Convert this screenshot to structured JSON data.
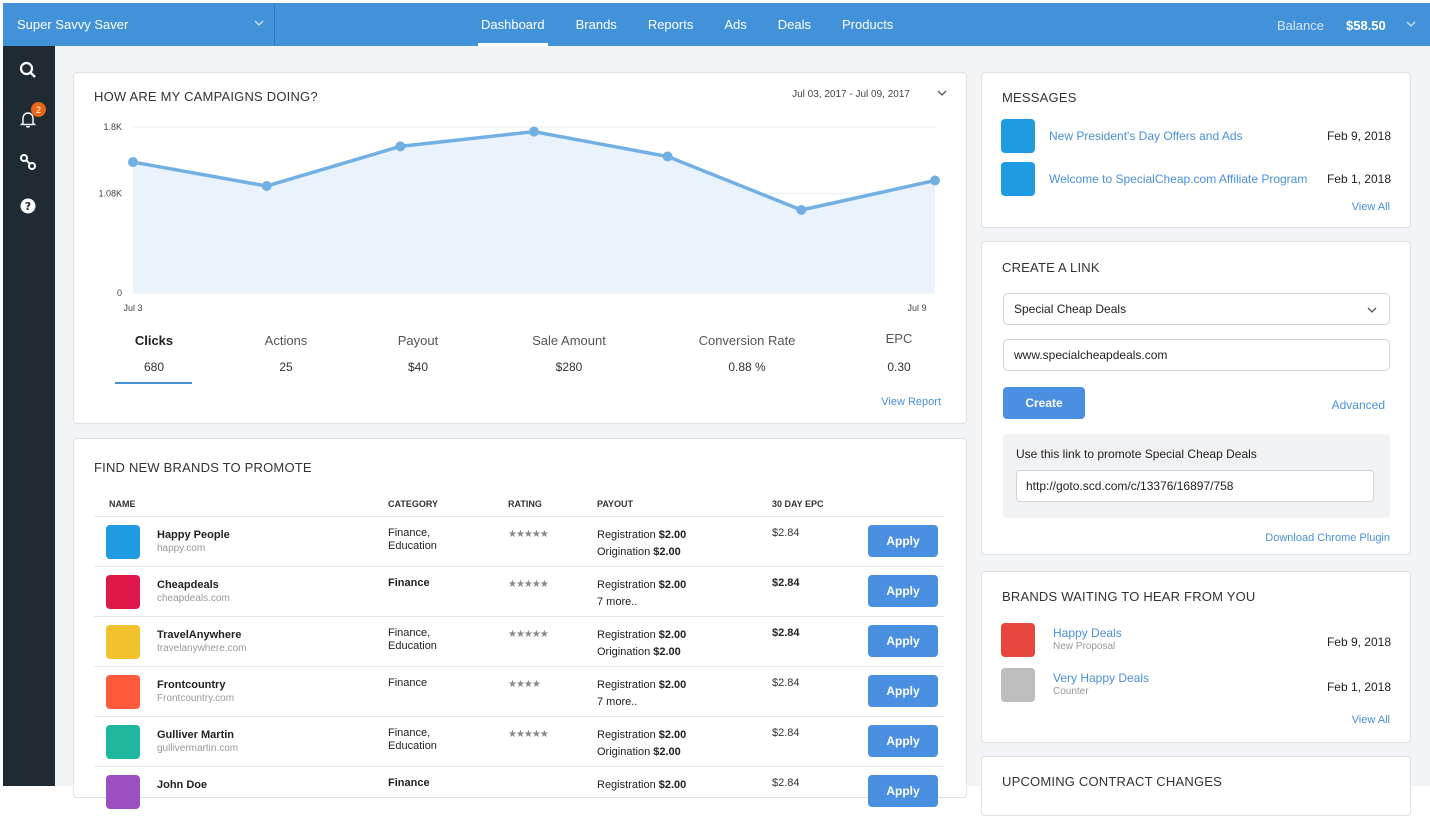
{
  "header": {
    "account_name": "Super Savvy Saver",
    "nav": [
      "Dashboard",
      "Brands",
      "Reports",
      "Ads",
      "Deals",
      "Products"
    ],
    "active_nav": "Dashboard",
    "balance_label": "Balance",
    "balance_value": "$58.50"
  },
  "sidebar": {
    "icons": [
      "search-icon",
      "bell-icon",
      "link-icon",
      "help-icon"
    ],
    "notification_count": "2"
  },
  "campaigns": {
    "title": "HOW ARE MY CAMPAIGNS DOING?",
    "date_range": "Jul 03, 2017 - Jul 09, 2017",
    "view_report": "View Report",
    "stats": [
      {
        "label": "Clicks",
        "value": "680"
      },
      {
        "label": "Actions",
        "value": "25"
      },
      {
        "label": "Payout",
        "value": "$40"
      },
      {
        "label": "Sale Amount",
        "value": "$280"
      },
      {
        "label": "Conversion Rate",
        "value": "0.88 %"
      },
      {
        "label": "EPC",
        "value": "0.30"
      }
    ]
  },
  "chart_data": {
    "type": "area",
    "x": [
      "Jul 3",
      "Jul 4",
      "Jul 5",
      "Jul 6",
      "Jul 7",
      "Jul 8",
      "Jul 9"
    ],
    "x_tick_labels": [
      "Jul 3",
      "Jul 9"
    ],
    "y_tick_labels": [
      "1.8K",
      "1.08K",
      "0"
    ],
    "series": [
      {
        "values": [
          1420,
          1160,
          1590,
          1750,
          1480,
          900,
          1220
        ]
      }
    ],
    "ylim": [
      0,
      1800
    ],
    "grid": true,
    "color": "#6aaee0"
  },
  "brands_table": {
    "title": "FIND NEW BRANDS TO PROMOTE",
    "columns": [
      "NAME",
      "CATEGORY",
      "RATING",
      "PAYOUT",
      "30 DAY EPC"
    ],
    "apply_label": "Apply",
    "rows": [
      {
        "name": "Happy People",
        "url": "happy.com",
        "color": "#1f9be2",
        "category": "Finance,\nEducation",
        "rating": "★★★★★",
        "payout_line1": "Registration",
        "payout_amount": "$2.00",
        "payout_line2": "Origination",
        "payout_amount2": "$2.00",
        "epc": "$2.84"
      },
      {
        "name": "Cheapdeals",
        "url": "cheapdeals.com",
        "color": "#e0174a",
        "category": "Finance",
        "rating": "★★★★★",
        "payout_line1": "Registration",
        "payout_amount": "$2.00",
        "payout_line2": "7 more..",
        "payout_amount2": "",
        "epc": "$2.84"
      },
      {
        "name": "TravelAnywhere",
        "url": "travelanywhere.com",
        "color": "#f2c12e",
        "category": "Finance,\nEducation",
        "rating": "★★★★★",
        "payout_line1": "Registration",
        "payout_amount": "$2.00",
        "payout_line2": "Origination",
        "payout_amount2": "$2.00",
        "epc": "$2.84"
      },
      {
        "name": "Frontcountry",
        "url": "Frontcountry.com",
        "color": "#ff5a3c",
        "category": "Finance",
        "rating": "★★★★",
        "payout_line1": "Registration",
        "payout_amount": "$2.00",
        "payout_line2": "7 more..",
        "payout_amount2": "",
        "epc": "$2.84"
      },
      {
        "name": "Gulliver Martin",
        "url": "gullivermartin.com",
        "color": "#1fb89e",
        "category": "Finance,\nEducation",
        "rating": "★★★★★",
        "payout_line1": "Registration",
        "payout_amount": "$2.00",
        "payout_line2": "Origination",
        "payout_amount2": "$2.00",
        "epc": "$2.84"
      },
      {
        "name": "John Doe",
        "url": "",
        "color": "#9b4fc1",
        "category": "Finance",
        "rating": "",
        "payout_line1": "Registration",
        "payout_amount": "$2.00",
        "payout_line2": "",
        "payout_amount2": "",
        "epc": "$2.84"
      }
    ]
  },
  "messages": {
    "title": "MESSAGES",
    "items": [
      {
        "text": "New President's Day Offers and Ads",
        "date": "Feb 9, 2018"
      },
      {
        "text": "Welcome to SpecialCheap.com Affiliate Program",
        "date": "Feb 1, 2018"
      }
    ],
    "view_all": "View All"
  },
  "create_link": {
    "title": "CREATE A LINK",
    "brand_value": "Special Cheap Deals",
    "url_value": "www.specialcheapdeals.com",
    "create_label": "Create",
    "advanced_label": "Advanced",
    "promo_label": "Use this link to promote Special Cheap Deals",
    "promo_url": "http://goto.scd.com/c/13376/16897/758",
    "download_plugin": "Download Chrome  Plugin"
  },
  "brands_waiting": {
    "title": "BRANDS WAITING TO HEAR FROM YOU",
    "items": [
      {
        "name": "Happy Deals",
        "sub": "New Proposal",
        "date": "Feb 9, 2018",
        "color": "#e8473e"
      },
      {
        "name": "Very Happy Deals",
        "sub": "Counter",
        "date": "Feb 1, 2018",
        "color": "#bdbdbd"
      }
    ],
    "view_all": "View All"
  },
  "contracts": {
    "title": "UPCOMING CONTRACT CHANGES"
  }
}
